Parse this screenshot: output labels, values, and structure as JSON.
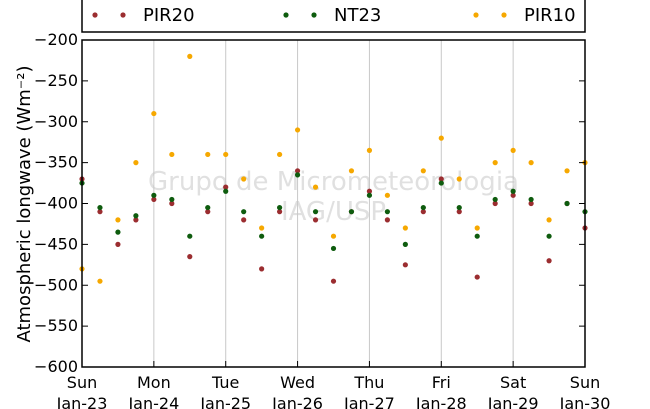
{
  "chart_data": {
    "type": "scatter",
    "ylabel": "Atmospheric longwave (Wm⁻²)",
    "ylim": [
      -600,
      -200
    ],
    "yticks": [
      -200,
      -250,
      -300,
      -350,
      -400,
      -450,
      -500,
      -550,
      -600
    ],
    "xlim": [
      0,
      7
    ],
    "xticks": [
      {
        "day": "Sun",
        "date": "Jan-23",
        "x": 0
      },
      {
        "day": "Mon",
        "date": "Jan-24",
        "x": 1
      },
      {
        "day": "Tue",
        "date": "Jan-25",
        "x": 2
      },
      {
        "day": "Wed",
        "date": "Jan-26",
        "x": 3
      },
      {
        "day": "Thu",
        "date": "Jan-27",
        "x": 4
      },
      {
        "day": "Fri",
        "date": "Jan-28",
        "x": 5
      },
      {
        "day": "Sat",
        "date": "Jan-29",
        "x": 6
      },
      {
        "day": "Sun",
        "date": "Jan-30",
        "x": 7
      }
    ],
    "grid": "vertical",
    "legend_placement": "top",
    "watermark": [
      "Grupo de Micrometeorologia",
      "IAG/USP"
    ],
    "series": [
      {
        "name": "PIR20",
        "color": "#9b2d30",
        "x": [
          0.0,
          0.25,
          0.5,
          0.75,
          1.0,
          1.25,
          1.5,
          1.75,
          2.0,
          2.25,
          2.5,
          2.75,
          3.0,
          3.25,
          3.5,
          3.75,
          4.0,
          4.25,
          4.5,
          4.75,
          5.0,
          5.25,
          5.5,
          5.75,
          6.0,
          6.25,
          6.5,
          6.75,
          7.0
        ],
        "y": [
          -370,
          -410,
          -450,
          -420,
          -395,
          -400,
          -465,
          -410,
          -380,
          -420,
          -480,
          -410,
          -360,
          -420,
          -495,
          -410,
          -385,
          -420,
          -475,
          -410,
          -370,
          -410,
          -490,
          -400,
          -390,
          -400,
          -470,
          -400,
          -430
        ]
      },
      {
        "name": "NT23",
        "color": "#0e5c0e",
        "x": [
          0.0,
          0.25,
          0.5,
          0.75,
          1.0,
          1.25,
          1.5,
          1.75,
          2.0,
          2.25,
          2.5,
          2.75,
          3.0,
          3.25,
          3.5,
          3.75,
          4.0,
          4.25,
          4.5,
          4.75,
          5.0,
          5.25,
          5.5,
          5.75,
          6.0,
          6.25,
          6.5,
          6.75,
          7.0
        ],
        "y": [
          -375,
          -405,
          -435,
          -415,
          -390,
          -395,
          -440,
          -405,
          -385,
          -410,
          -440,
          -405,
          -365,
          -410,
          -455,
          -410,
          -390,
          -410,
          -450,
          -405,
          -375,
          -405,
          -440,
          -395,
          -385,
          -395,
          -440,
          -400,
          -410
        ]
      },
      {
        "name": "PIR10",
        "color": "#f6a800",
        "x": [
          0.0,
          0.25,
          0.5,
          0.75,
          1.0,
          1.25,
          1.5,
          1.75,
          2.0,
          2.25,
          2.5,
          2.75,
          3.0,
          3.25,
          3.5,
          3.75,
          4.0,
          4.25,
          4.5,
          4.75,
          5.0,
          5.25,
          5.5,
          5.75,
          6.0,
          6.25,
          6.5,
          6.75,
          7.0
        ],
        "y": [
          -480,
          -495,
          -420,
          -350,
          -290,
          -340,
          -220,
          -340,
          -340,
          -370,
          -430,
          -340,
          -310,
          -380,
          -440,
          -360,
          -335,
          -390,
          -430,
          -360,
          -320,
          -370,
          -430,
          -350,
          -335,
          -350,
          -420,
          -360,
          -350
        ]
      }
    ]
  }
}
